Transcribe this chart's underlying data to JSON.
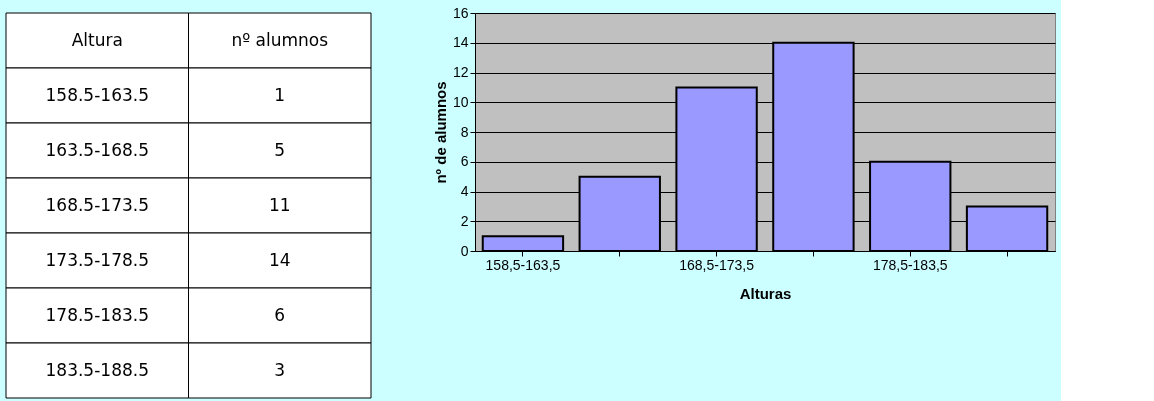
{
  "chart_data": [
    {
      "type": "other",
      "annotations": [
        "Altura",
        "nº alumnos"
      ],
      "categories": [
        "158.5-163.5",
        "163.5-168.5",
        "168.5-173.5",
        "173.5-178.5",
        "178.5-183.5",
        "183.5-188.5"
      ],
      "values": [
        1,
        5,
        11,
        14,
        6,
        3
      ],
      "data_labels": true
    },
    {
      "type": "bar",
      "xlabel": "Alturas",
      "ylabel": "nº de alumnos",
      "categories": [
        "158,5-163,5",
        null,
        "168,5-173,5",
        null,
        "178,5-183,5",
        null
      ],
      "values": [
        1,
        5,
        11,
        14,
        6,
        3
      ],
      "color": "#9999ff",
      "ylim": [
        0,
        16
      ],
      "yticks": [
        0,
        2,
        4,
        6,
        8,
        10,
        12,
        14,
        16
      ],
      "grid": "y"
    }
  ]
}
